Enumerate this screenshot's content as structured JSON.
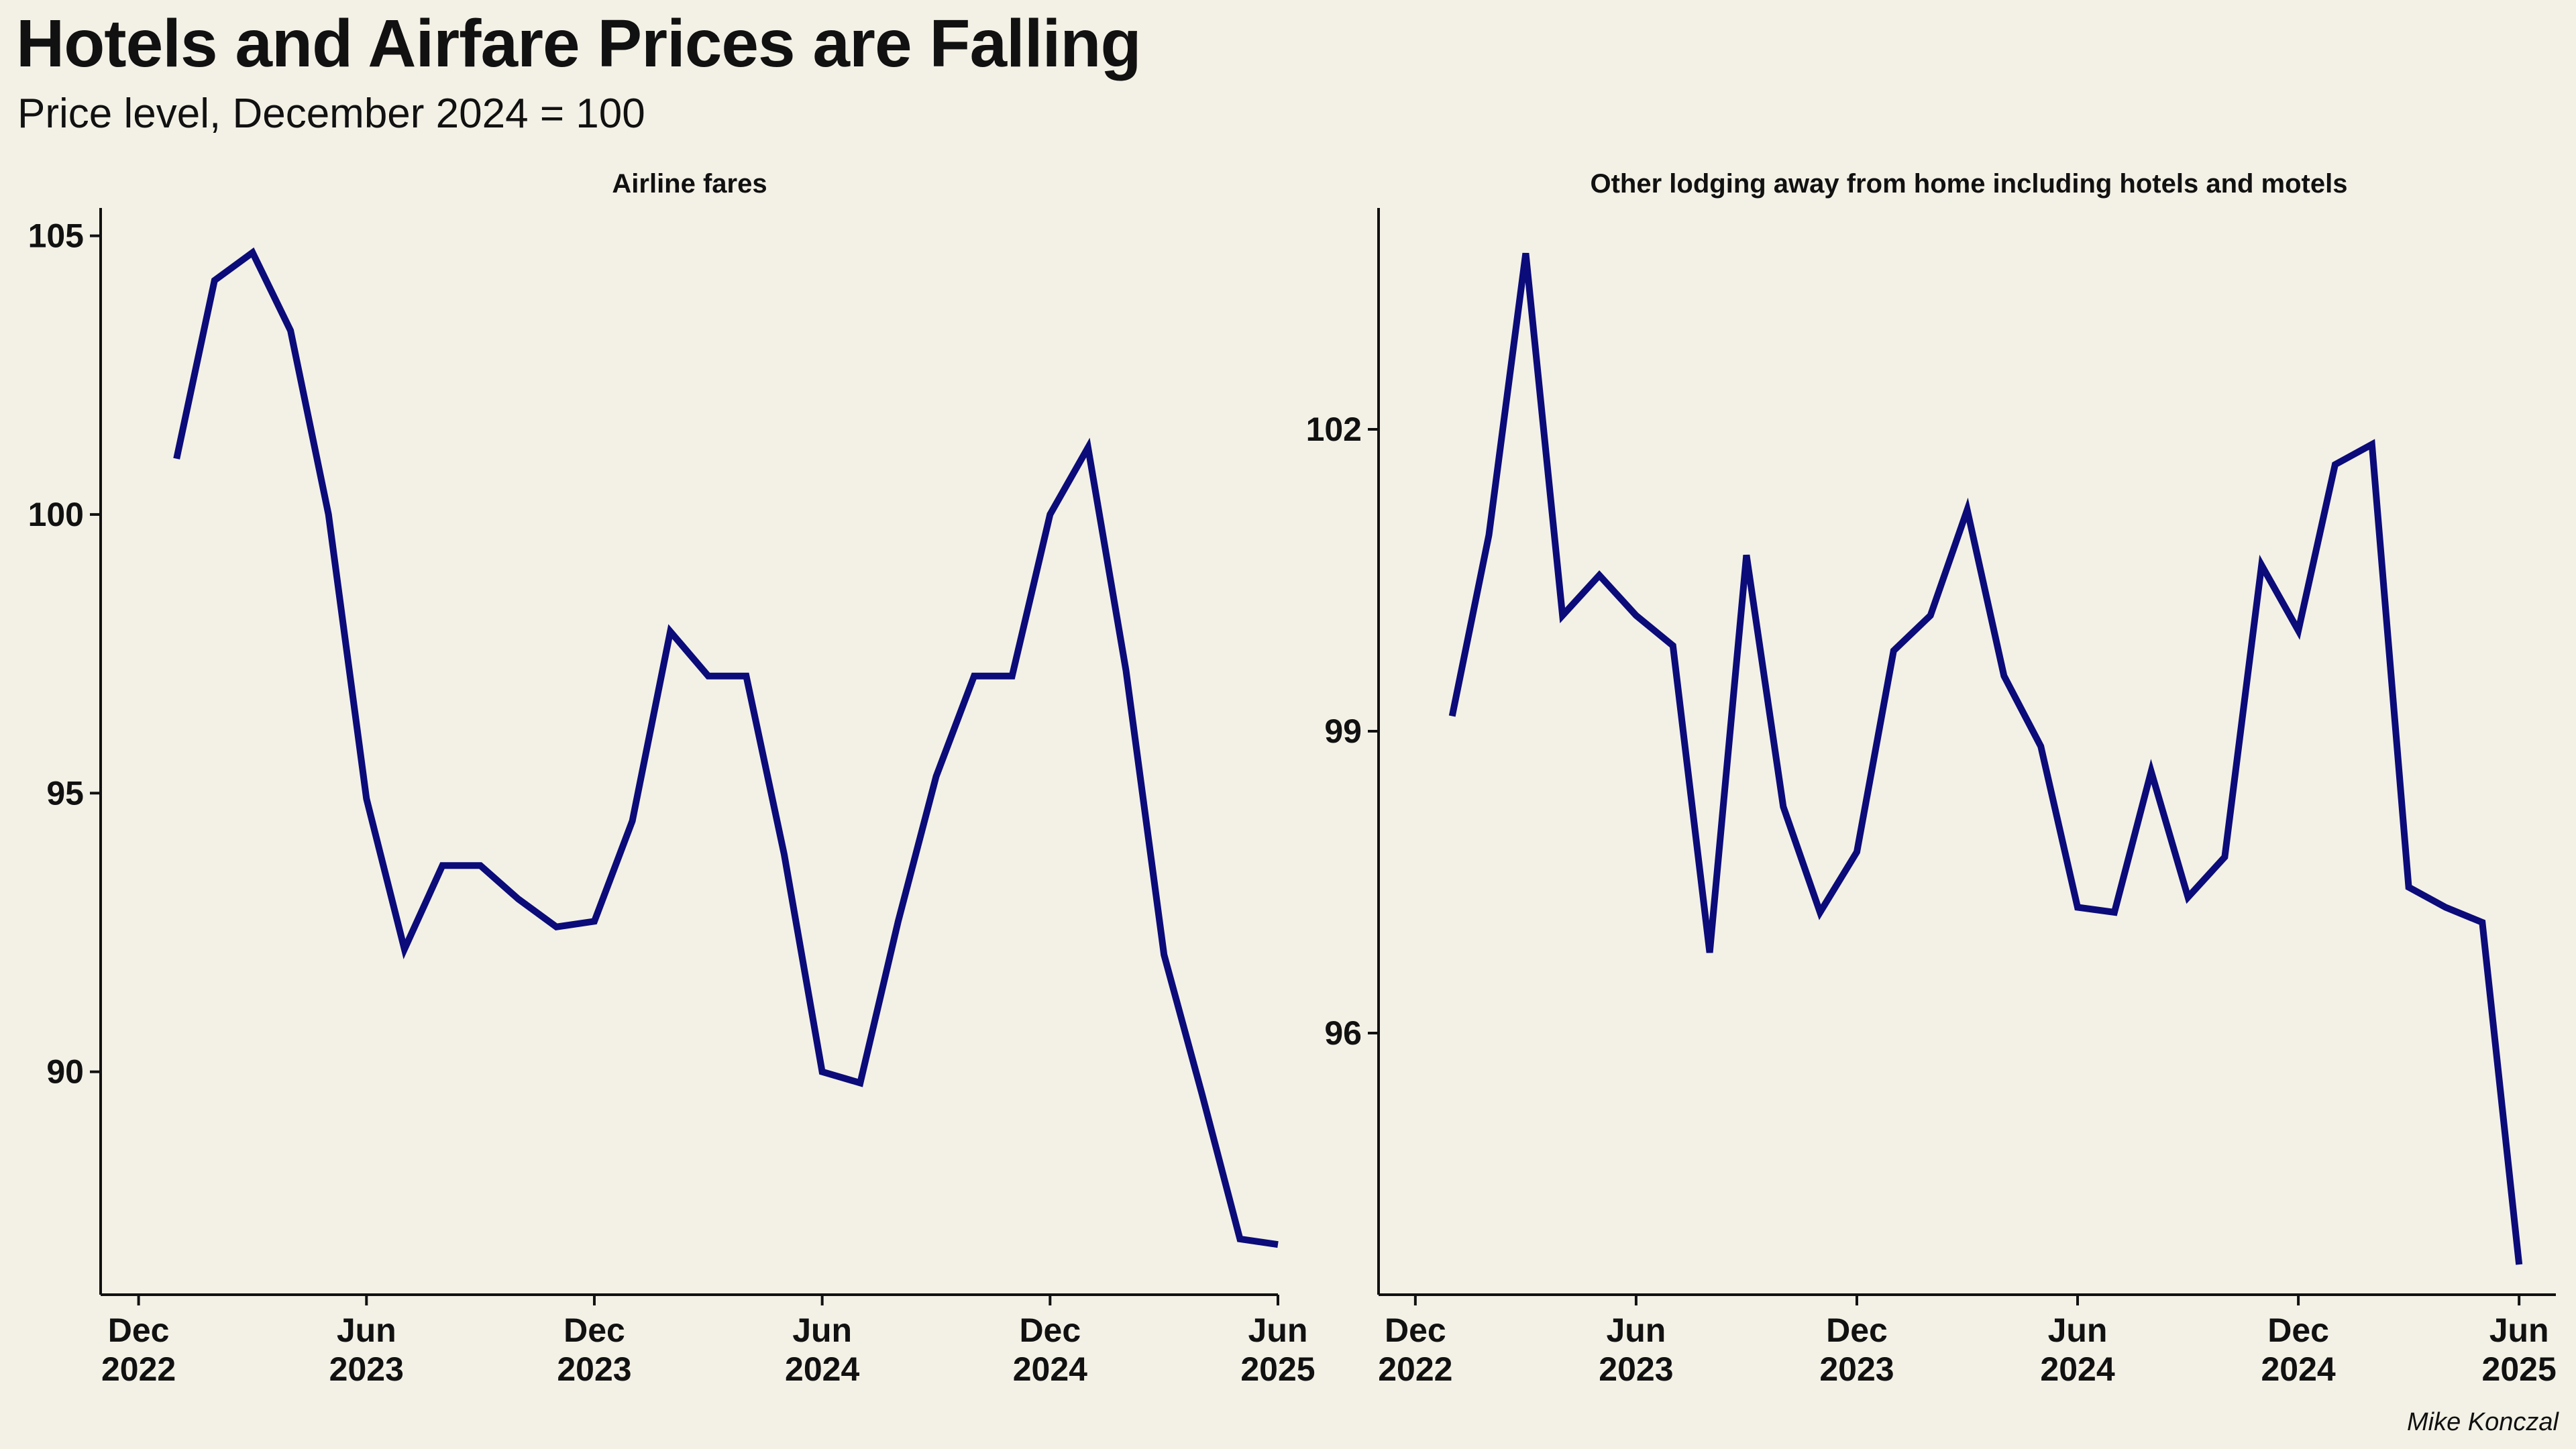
{
  "title": "Hotels and Airfare Prices are Falling",
  "subtitle": "Price level, December 2024 = 100",
  "credit": "Mike Konczal",
  "colors": {
    "line": "#0b0b7a",
    "background": "#f3f1e6",
    "axis": "#111111"
  },
  "chart_data": [
    {
      "type": "line",
      "title": "Airline fares",
      "x_ticks": [
        {
          "date": "2022-12",
          "month": "Dec",
          "year": "2022"
        },
        {
          "date": "2023-06",
          "month": "Jun",
          "year": "2023"
        },
        {
          "date": "2023-12",
          "month": "Dec",
          "year": "2023"
        },
        {
          "date": "2024-06",
          "month": "Jun",
          "year": "2024"
        },
        {
          "date": "2024-12",
          "month": "Dec",
          "year": "2024"
        },
        {
          "date": "2025-06",
          "month": "Jun",
          "year": "2025"
        }
      ],
      "y_ticks": [
        90,
        95,
        100,
        105
      ],
      "xlim": [
        "2022-11",
        "2025-06"
      ],
      "ylim": [
        86.0,
        105.5
      ],
      "series": [
        {
          "x": [
            "2023-01",
            "2023-02",
            "2023-03",
            "2023-04",
            "2023-05",
            "2023-06",
            "2023-07",
            "2023-08",
            "2023-09",
            "2023-10",
            "2023-11",
            "2023-12",
            "2024-01",
            "2024-02",
            "2024-03",
            "2024-04",
            "2024-05",
            "2024-06",
            "2024-07",
            "2024-08",
            "2024-09",
            "2024-10",
            "2024-11",
            "2024-12",
            "2025-01",
            "2025-02",
            "2025-03",
            "2025-04",
            "2025-05",
            "2025-06"
          ],
          "values": [
            101.0,
            104.2,
            104.7,
            103.3,
            100.0,
            94.9,
            92.2,
            93.7,
            93.7,
            93.1,
            92.6,
            92.7,
            94.5,
            97.9,
            97.1,
            97.1,
            93.9,
            90.0,
            89.8,
            92.7,
            95.3,
            97.1,
            97.1,
            100.0,
            101.2,
            97.2,
            92.1,
            89.6,
            87.0,
            86.9
          ]
        }
      ]
    },
    {
      "type": "line",
      "title": "Other lodging away from home including hotels and motels",
      "x_ticks": [
        {
          "date": "2022-12",
          "month": "Dec",
          "year": "2022"
        },
        {
          "date": "2023-06",
          "month": "Jun",
          "year": "2023"
        },
        {
          "date": "2023-12",
          "month": "Dec",
          "year": "2023"
        },
        {
          "date": "2024-06",
          "month": "Jun",
          "year": "2024"
        },
        {
          "date": "2024-12",
          "month": "Dec",
          "year": "2024"
        },
        {
          "date": "2025-06",
          "month": "Jun",
          "year": "2025"
        }
      ],
      "y_ticks": [
        96,
        99,
        102
      ],
      "xlim": [
        "2022-11",
        "2025-07"
      ],
      "ylim": [
        93.4,
        104.2
      ],
      "series": [
        {
          "x": [
            "2023-01",
            "2023-02",
            "2023-03",
            "2023-04",
            "2023-05",
            "2023-06",
            "2023-07",
            "2023-08",
            "2023-09",
            "2023-10",
            "2023-11",
            "2023-12",
            "2024-01",
            "2024-02",
            "2024-03",
            "2024-04",
            "2024-05",
            "2024-06",
            "2024-07",
            "2024-08",
            "2024-09",
            "2024-10",
            "2024-11",
            "2024-12",
            "2025-01",
            "2025-02",
            "2025-03",
            "2025-04",
            "2025-05",
            "2025-06"
          ],
          "values": [
            99.15,
            100.95,
            103.75,
            100.15,
            100.55,
            100.15,
            99.85,
            96.8,
            100.75,
            98.25,
            97.2,
            97.8,
            99.8,
            100.15,
            101.2,
            99.55,
            98.85,
            97.25,
            97.2,
            98.6,
            97.35,
            97.75,
            100.65,
            100.0,
            101.65,
            101.85,
            97.45,
            97.25,
            97.1,
            93.7
          ]
        }
      ]
    }
  ]
}
